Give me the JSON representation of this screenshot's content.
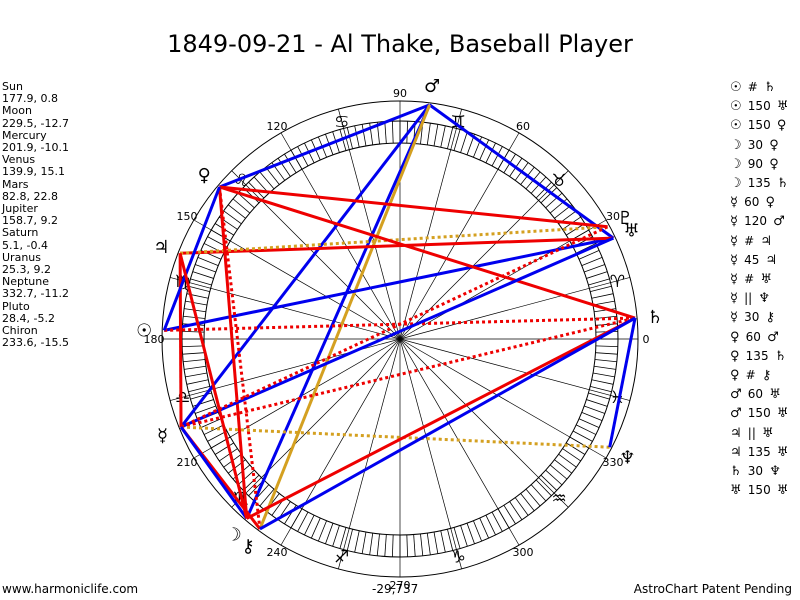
{
  "title": "1849-09-21 - Al Thake, Baseball Player",
  "planets": [
    {
      "name": "Sun",
      "coords": "177.9, 0.8"
    },
    {
      "name": "Moon",
      "coords": "229.5, -12.7"
    },
    {
      "name": "Mercury",
      "coords": "201.9, -10.1"
    },
    {
      "name": "Venus",
      "coords": "139.9, 15.1"
    },
    {
      "name": "Mars",
      "coords": "82.8, 22.8"
    },
    {
      "name": "Jupiter",
      "coords": "158.7, 9.2"
    },
    {
      "name": "Saturn",
      "coords": "5.1, -0.4"
    },
    {
      "name": "Uranus",
      "coords": "25.3, 9.2"
    },
    {
      "name": "Neptune",
      "coords": "332.7, -11.2"
    },
    {
      "name": "Pluto",
      "coords": "28.4, -5.2"
    },
    {
      "name": "Chiron",
      "coords": "233.6, -15.5"
    }
  ],
  "aspects": [
    {
      "p1": "☉",
      "sym": "#",
      "p2": "♄"
    },
    {
      "p1": "☉",
      "sym": "150",
      "p2": "♅"
    },
    {
      "p1": "☉",
      "sym": "150",
      "p2": "♀"
    },
    {
      "p1": "☽",
      "sym": "30",
      "p2": "♀"
    },
    {
      "p1": "☽",
      "sym": "90",
      "p2": "♀"
    },
    {
      "p1": "☽",
      "sym": "135",
      "p2": "♄"
    },
    {
      "p1": "☿",
      "sym": "60",
      "p2": "♀"
    },
    {
      "p1": "☿",
      "sym": "120",
      "p2": "♂"
    },
    {
      "p1": "☿",
      "sym": "#",
      "p2": "♃"
    },
    {
      "p1": "☿",
      "sym": "45",
      "p2": "♃"
    },
    {
      "p1": "☿",
      "sym": "#",
      "p2": "♅"
    },
    {
      "p1": "☿",
      "sym": "||",
      "p2": "♆"
    },
    {
      "p1": "☿",
      "sym": "30",
      "p2": "⚷"
    },
    {
      "p1": "♀",
      "sym": "60",
      "p2": "♂"
    },
    {
      "p1": "♀",
      "sym": "135",
      "p2": "♄"
    },
    {
      "p1": "♀",
      "sym": "#",
      "p2": "⚷"
    },
    {
      "p1": "♂",
      "sym": "60",
      "p2": "♅"
    },
    {
      "p1": "♂",
      "sym": "150",
      "p2": "♅"
    },
    {
      "p1": "♃",
      "sym": "||",
      "p2": "♅"
    },
    {
      "p1": "♃",
      "sym": "135",
      "p2": "♅"
    },
    {
      "p1": "♄",
      "sym": "30",
      "p2": "♆"
    },
    {
      "p1": "♅",
      "sym": "150",
      "p2": "♅"
    }
  ],
  "degree_labels": [
    "0",
    "30",
    "60",
    "90",
    "120",
    "150",
    "180",
    "210",
    "240",
    "270",
    "300",
    "330"
  ],
  "chart_bodies": [
    {
      "name": "sun",
      "glyph": "☉",
      "lon": 177.9
    },
    {
      "name": "moon",
      "glyph": "☽",
      "lon": 229.5
    },
    {
      "name": "mercury",
      "glyph": "☿",
      "lon": 201.9
    },
    {
      "name": "venus",
      "glyph": "♀",
      "lon": 139.9
    },
    {
      "name": "mars",
      "glyph": "♂",
      "lon": 82.8
    },
    {
      "name": "jupiter",
      "glyph": "♃",
      "lon": 158.7
    },
    {
      "name": "saturn",
      "glyph": "♄",
      "lon": 5.1
    },
    {
      "name": "uranus",
      "glyph": "♅",
      "lon": 25.3
    },
    {
      "name": "neptune",
      "glyph": "♆",
      "lon": 332.7
    },
    {
      "name": "pluto",
      "glyph": "♇",
      "lon": 28.4
    },
    {
      "name": "chiron",
      "glyph": "⚷",
      "lon": 233.6
    }
  ],
  "zodiac_signs": [
    {
      "name": "aries",
      "glyph": "♈"
    },
    {
      "name": "taurus",
      "glyph": "♉"
    },
    {
      "name": "gemini",
      "glyph": "♊"
    },
    {
      "name": "cancer",
      "glyph": "♋"
    },
    {
      "name": "leo",
      "glyph": "♌"
    },
    {
      "name": "virgo",
      "glyph": "♍"
    },
    {
      "name": "libra",
      "glyph": "♎"
    },
    {
      "name": "scorpio",
      "glyph": "♏"
    },
    {
      "name": "sagittarius",
      "glyph": "♐"
    },
    {
      "name": "capricorn",
      "glyph": "♑"
    },
    {
      "name": "aquarius",
      "glyph": "♒"
    },
    {
      "name": "pisces",
      "glyph": "♓"
    }
  ],
  "aspect_lines": [
    {
      "a": 82.8,
      "b": 25.3,
      "color": "#0000ee",
      "dashed": false
    },
    {
      "a": 82.8,
      "b": 201.9,
      "color": "#0000ee",
      "dashed": false
    },
    {
      "a": 82.8,
      "b": 139.9,
      "color": "#0000ee",
      "dashed": false
    },
    {
      "a": 82.8,
      "b": 229.5,
      "color": "#0000ee",
      "dashed": false
    },
    {
      "a": 82.8,
      "b": 233.6,
      "color": "#d4a020",
      "dashed": false
    },
    {
      "a": 177.9,
      "b": 25.3,
      "color": "#0000ee",
      "dashed": false
    },
    {
      "a": 177.9,
      "b": 5.1,
      "color": "#ee0000",
      "dashed": true
    },
    {
      "a": 158.7,
      "b": 25.3,
      "color": "#ee0000",
      "dashed": false
    },
    {
      "a": 158.7,
      "b": 28.4,
      "color": "#d4a020",
      "dashed": true
    },
    {
      "a": 139.9,
      "b": 28.4,
      "color": "#ee0000",
      "dashed": false
    },
    {
      "a": 139.9,
      "b": 5.1,
      "color": "#ee0000",
      "dashed": false
    },
    {
      "a": 139.9,
      "b": 229.5,
      "color": "#ee0000",
      "dashed": false
    },
    {
      "a": 139.9,
      "b": 233.6,
      "color": "#ee0000",
      "dashed": true
    },
    {
      "a": 158.7,
      "b": 201.9,
      "color": "#ee0000",
      "dashed": false
    },
    {
      "a": 201.9,
      "b": 25.3,
      "color": "#0000ee",
      "dashed": false
    },
    {
      "a": 201.9,
      "b": 5.1,
      "color": "#ee0000",
      "dashed": true
    },
    {
      "a": 201.9,
      "b": 332.7,
      "color": "#d4a020",
      "dashed": true
    },
    {
      "a": 201.9,
      "b": 233.6,
      "color": "#ee0000",
      "dashed": false
    },
    {
      "a": 201.9,
      "b": 28.4,
      "color": "#ee0000",
      "dashed": true
    },
    {
      "a": 229.5,
      "b": 5.1,
      "color": "#ee0000",
      "dashed": false
    },
    {
      "a": 233.6,
      "b": 5.1,
      "color": "#0000ee",
      "dashed": false
    },
    {
      "a": 5.1,
      "b": 332.7,
      "color": "#0000ee",
      "dashed": false
    },
    {
      "a": 229.5,
      "b": 201.9,
      "color": "#0000ee",
      "dashed": false
    },
    {
      "a": 177.9,
      "b": 139.9,
      "color": "#0000ee",
      "dashed": false
    },
    {
      "a": 158.7,
      "b": 229.5,
      "color": "#ee0000",
      "dashed": false
    }
  ],
  "footer": {
    "left": "www.harmoniclife.com",
    "center": "-29,737",
    "right": "AstroChart Patent Pending"
  }
}
